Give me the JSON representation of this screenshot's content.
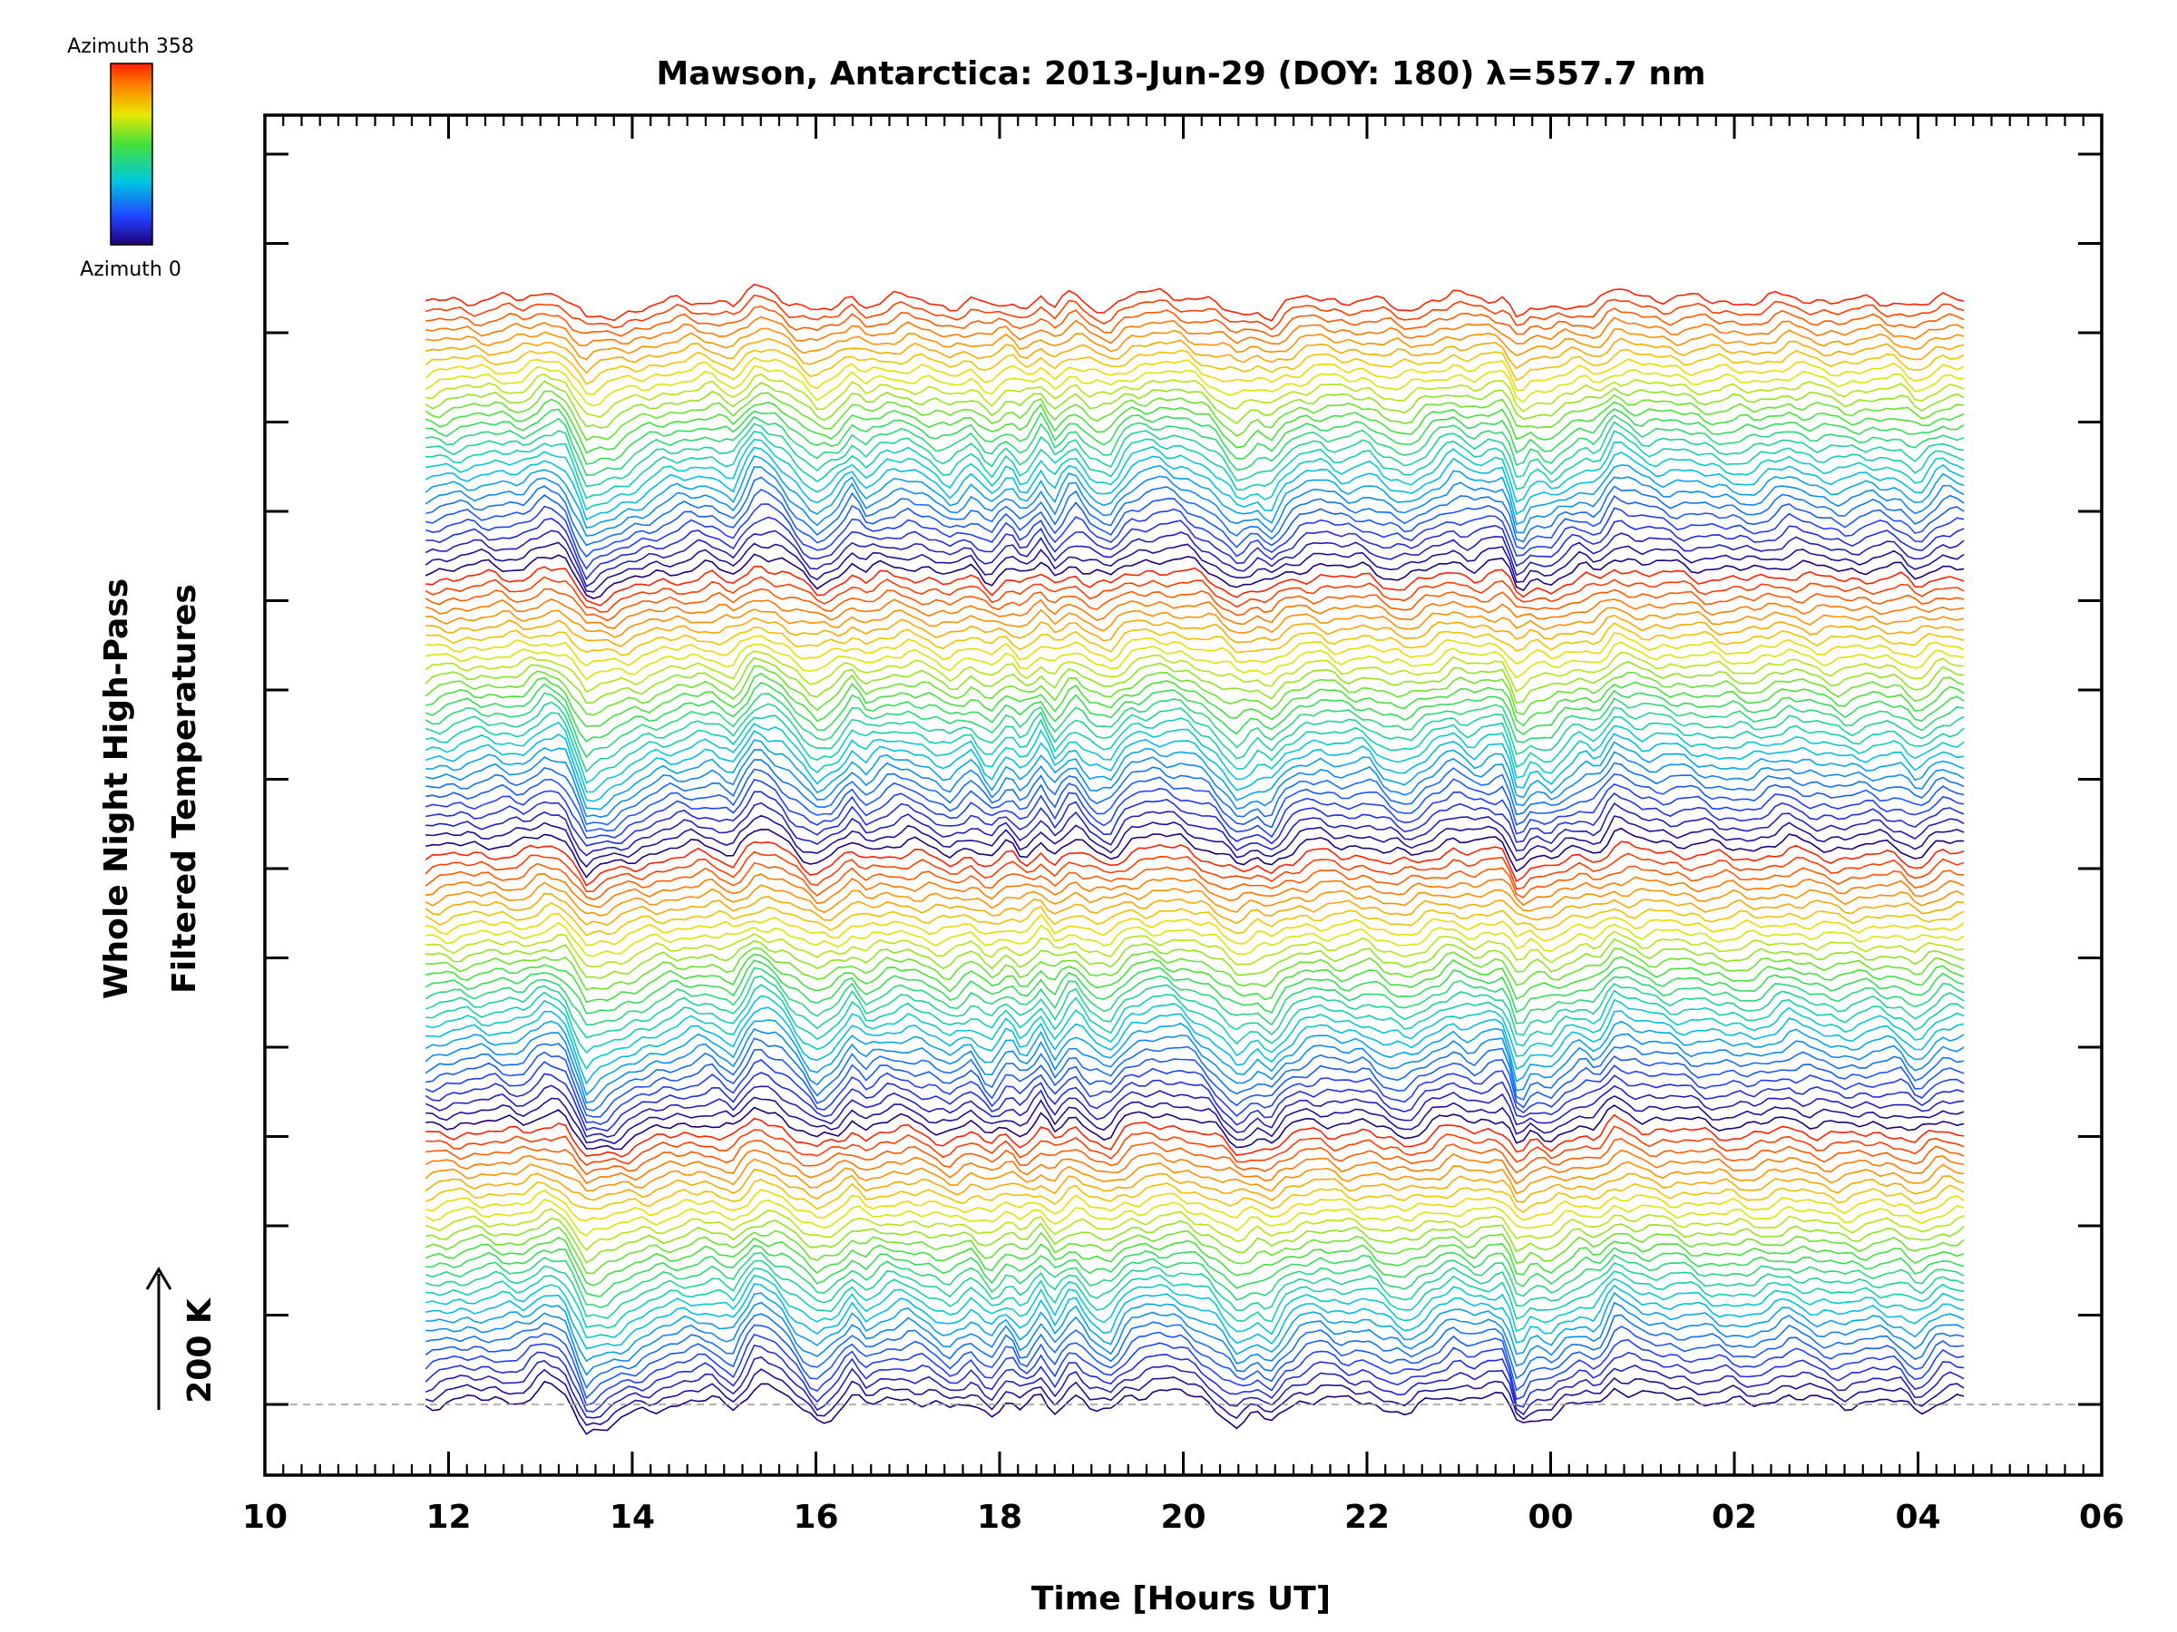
{
  "chart_data": {
    "type": "line",
    "title": "Mawson, Antarctica: 2013-Jun-29 (DOY: 180) λ=557.7 nm",
    "xlabel": "Time [Hours UT]",
    "ylabel_line1": "Whole Night High-Pass",
    "ylabel_line2": "Filtered Temperatures",
    "scale_label": "200 K",
    "x_ticks": [
      "10",
      "12",
      "14",
      "16",
      "18",
      "20",
      "22",
      "00",
      "02",
      "04",
      "06"
    ],
    "x_tick_hours": [
      10,
      12,
      14,
      16,
      18,
      20,
      22,
      24,
      26,
      28,
      30
    ],
    "xlim": [
      10,
      30
    ],
    "data_range_hours": [
      11.75,
      28.5
    ],
    "y_scale_K": 200,
    "colorbar": {
      "top_label": "Azimuth  358",
      "bottom_label": "Azimuth  0",
      "colormap": "rainbow",
      "azimuth_range": [
        0,
        358
      ]
    },
    "n_traces": 112,
    "grid": false,
    "legend": "colorbar top-left",
    "baseline_style": "dashed gray",
    "colors": {
      "low": "#20007a",
      "mid_blue": "#2040ff",
      "cyan": "#00c8e0",
      "green": "#40e040",
      "yellow": "#e8e800",
      "orange": "#ff8000",
      "high": "#ff2000"
    },
    "common_signal": [
      [
        11.75,
        0
      ],
      [
        12.2,
        10
      ],
      [
        12.5,
        12
      ],
      [
        12.8,
        8
      ],
      [
        13.05,
        35
      ],
      [
        13.25,
        28
      ],
      [
        13.5,
        -60
      ],
      [
        13.75,
        -45
      ],
      [
        14.0,
        -25
      ],
      [
        14.3,
        -5
      ],
      [
        14.6,
        5
      ],
      [
        14.85,
        10
      ],
      [
        15.1,
        -10
      ],
      [
        15.35,
        48
      ],
      [
        15.6,
        28
      ],
      [
        15.8,
        -5
      ],
      [
        16.0,
        -35
      ],
      [
        16.2,
        -20
      ],
      [
        16.4,
        18
      ],
      [
        16.55,
        -5
      ],
      [
        16.75,
        12
      ],
      [
        17.0,
        15
      ],
      [
        17.2,
        5
      ],
      [
        17.45,
        -15
      ],
      [
        17.7,
        8
      ],
      [
        17.9,
        -25
      ],
      [
        18.1,
        10
      ],
      [
        18.25,
        -20
      ],
      [
        18.45,
        20
      ],
      [
        18.6,
        -15
      ],
      [
        18.8,
        25
      ],
      [
        19.0,
        -10
      ],
      [
        19.2,
        -20
      ],
      [
        19.4,
        20
      ],
      [
        19.7,
        30
      ],
      [
        20.0,
        25
      ],
      [
        20.3,
        0
      ],
      [
        20.6,
        -45
      ],
      [
        20.8,
        -25
      ],
      [
        20.95,
        -40
      ],
      [
        21.1,
        -10
      ],
      [
        21.3,
        10
      ],
      [
        21.5,
        15
      ],
      [
        21.75,
        5
      ],
      [
        22.0,
        10
      ],
      [
        22.2,
        -10
      ],
      [
        22.45,
        -20
      ],
      [
        22.7,
        5
      ],
      [
        22.95,
        25
      ],
      [
        23.15,
        10
      ],
      [
        23.35,
        20
      ],
      [
        23.5,
        20
      ],
      [
        23.65,
        -55
      ],
      [
        23.8,
        -20
      ],
      [
        24.0,
        -30
      ],
      [
        24.15,
        -10
      ],
      [
        24.35,
        5
      ],
      [
        24.5,
        -5
      ],
      [
        24.7,
        40
      ],
      [
        25.0,
        20
      ],
      [
        25.4,
        15
      ],
      [
        25.8,
        5
      ],
      [
        26.2,
        0
      ],
      [
        26.6,
        20
      ],
      [
        26.9,
        8
      ],
      [
        27.2,
        0
      ],
      [
        27.5,
        8
      ],
      [
        27.8,
        5
      ],
      [
        28.0,
        -20
      ],
      [
        28.25,
        15
      ],
      [
        28.5,
        10
      ]
    ]
  }
}
